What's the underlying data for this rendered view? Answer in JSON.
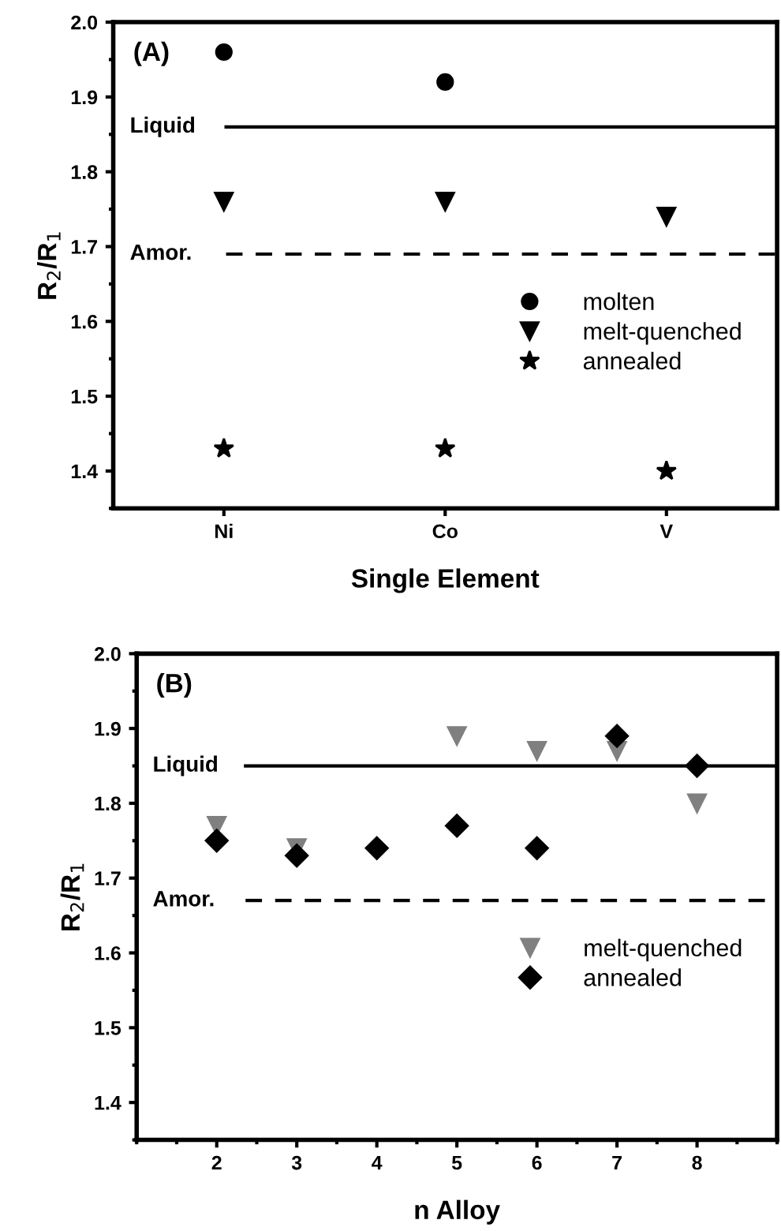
{
  "chart_data": [
    {
      "type": "scatter",
      "xlabel": "Single Element",
      "ylabel": "R$_{2}$/R$_{1}$",
      "annotations": [
        "(A)"
      ],
      "categories": [
        "Ni",
        "Co",
        "V"
      ],
      "ylim": [
        1.35,
        2.0
      ],
      "yticks": [
        1.4,
        1.5,
        1.6,
        1.7,
        1.8,
        1.9,
        {
          "value": 2.0,
          "label": "2.0"
        }
      ],
      "grid": false,
      "legend": "right",
      "series": [
        {
          "name": "molten",
          "color": "#000000",
          "marker": "circle",
          "values": [
            1.96,
            1.92,
            null
          ]
        },
        {
          "name": "melt-quenched",
          "color": "#000000",
          "marker": "triangle",
          "values": [
            1.76,
            1.76,
            1.74
          ]
        },
        {
          "name": "annealed",
          "color": "#000000",
          "marker": "star",
          "values": [
            1.43,
            1.43,
            1.4
          ]
        }
      ],
      "ref_lines": [
        {
          "axis": "y",
          "value": 1.86,
          "label": "Liquid",
          "line_style": "solid",
          "color": "#000000"
        },
        {
          "axis": "y",
          "value": 1.69,
          "label": "Amor.",
          "line_style": "dashed",
          "color": "#000000"
        }
      ]
    },
    {
      "type": "scatter",
      "xlabel": "n Alloy",
      "ylabel": "R$_{2}$/R$_{1}$",
      "annotations": [
        "(B)"
      ],
      "x": [
        2,
        3,
        4,
        5,
        6,
        7,
        8
      ],
      "xlim": [
        1,
        9
      ],
      "xticks": [
        2,
        3,
        4,
        5,
        6,
        7,
        8
      ],
      "ylim": [
        1.35,
        2.0
      ],
      "yticks": [
        1.4,
        1.5,
        1.6,
        1.7,
        1.8,
        1.9,
        {
          "value": 2.0,
          "label": "2.0"
        }
      ],
      "grid": false,
      "legend": "right",
      "series": [
        {
          "name": "melt-quenched",
          "color": "#808080",
          "marker": "triangle",
          "values": [
            1.77,
            1.74,
            null,
            1.89,
            1.87,
            1.87,
            1.8
          ]
        },
        {
          "name": "annealed",
          "color": "#000000",
          "marker": "diamond",
          "values": [
            1.75,
            1.73,
            1.74,
            1.77,
            1.74,
            1.89,
            1.85
          ]
        }
      ],
      "ref_lines": [
        {
          "axis": "y",
          "value": 1.85,
          "label": "Liquid",
          "line_style": "solid",
          "color": "#000000"
        },
        {
          "axis": "y",
          "value": 1.67,
          "label": "Amor.",
          "line_style": "dashed",
          "color": "#000000"
        }
      ]
    }
  ]
}
